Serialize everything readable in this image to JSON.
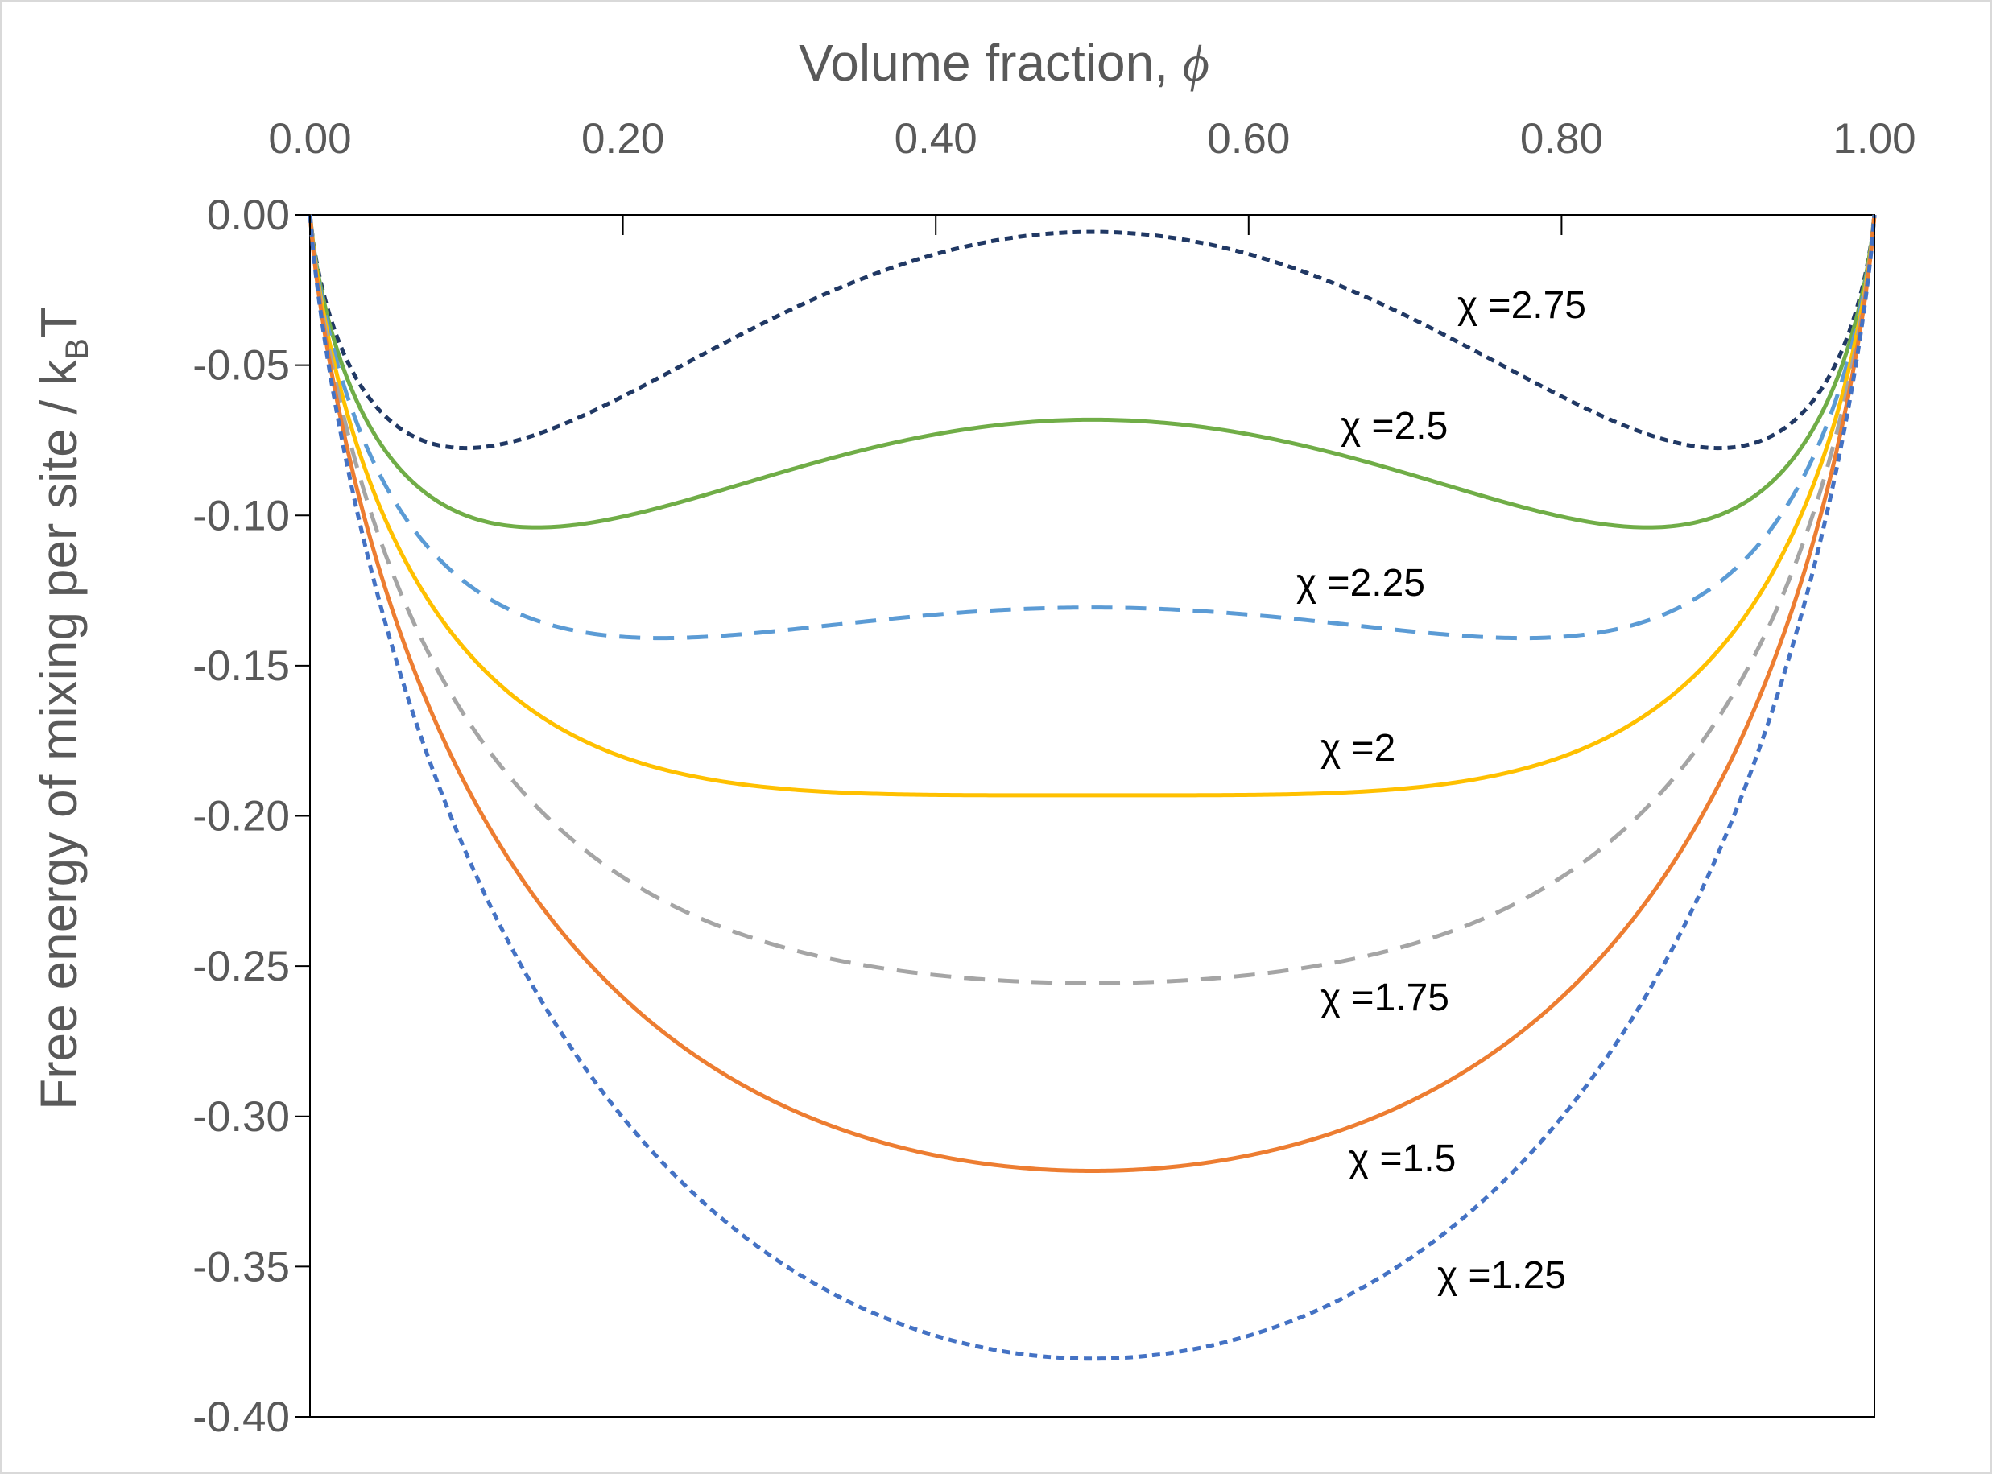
{
  "chart_data": {
    "type": "line",
    "xlabel": "Volume fraction, ",
    "xlabel_symbol": "ϕ",
    "ylabel": "Free energy of mixing per site / k",
    "ylabel_sub": "B",
    "ylabel_tail": "T",
    "x_axis_position": "top",
    "xlim": [
      0,
      1
    ],
    "ylim": [
      -0.4,
      0
    ],
    "x_ticks": [
      "0.00",
      "0.20",
      "0.40",
      "0.60",
      "0.80",
      "1.00"
    ],
    "y_ticks": [
      "0.00",
      "-0.05",
      "-0.10",
      "-0.15",
      "-0.20",
      "-0.25",
      "-0.30",
      "-0.35",
      "-0.40"
    ],
    "grid": false,
    "legend": "inline labels",
    "model": "phi*ln(phi) + (1-phi)*ln(1-phi) + chi*phi*(1-phi)",
    "series": [
      {
        "chi": 2.75,
        "label": "χ =2.75",
        "color": "#203864",
        "style": "dotted"
      },
      {
        "chi": 2.5,
        "label": "χ =2.5",
        "color": "#70ad47",
        "style": "solid"
      },
      {
        "chi": 2.25,
        "label": "χ =2.25",
        "color": "#5b9bd5",
        "style": "dashed"
      },
      {
        "chi": 2.0,
        "label": "χ =2",
        "color": "#ffc000",
        "style": "solid"
      },
      {
        "chi": 1.75,
        "label": "χ =1.75",
        "color": "#a5a5a5",
        "style": "dashed"
      },
      {
        "chi": 1.5,
        "label": "χ =1.5",
        "color": "#ed7d31",
        "style": "solid"
      },
      {
        "chi": 1.25,
        "label": "χ =1.25",
        "color": "#4472c4",
        "style": "dotted"
      }
    ]
  }
}
